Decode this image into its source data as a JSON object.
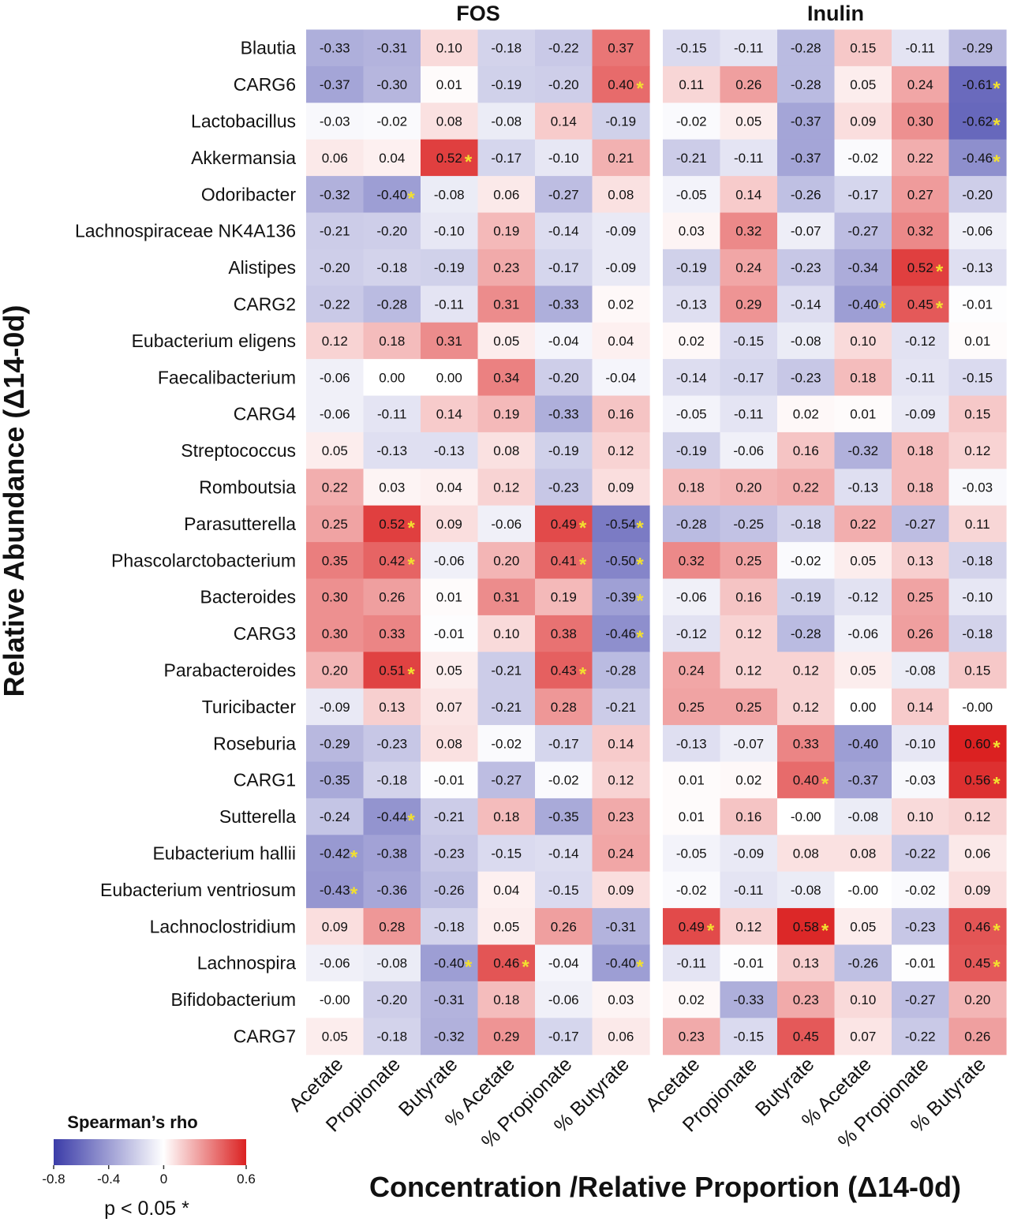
{
  "chart_data": {
    "type": "heatmap",
    "panels": [
      {
        "title": "FOS",
        "columns": [
          "Acetate",
          "Propionate",
          "Butyrate",
          "% Acetate",
          "% Propionate",
          "% Butyrate"
        ],
        "values": [
          [
            "-0.33",
            "-0.31",
            "0.10",
            "-0.18",
            "-0.22",
            "0.37"
          ],
          [
            "-0.37",
            "-0.30",
            "0.01",
            "-0.19",
            "-0.20",
            "0.40"
          ],
          [
            "-0.03",
            "-0.02",
            "0.08",
            "-0.08",
            "0.14",
            "-0.19"
          ],
          [
            "0.06",
            "0.04",
            "0.52",
            "-0.17",
            "-0.10",
            "0.21"
          ],
          [
            "-0.32",
            "-0.40",
            "-0.08",
            "0.06",
            "-0.27",
            "0.08"
          ],
          [
            "-0.21",
            "-0.20",
            "-0.10",
            "0.19",
            "-0.14",
            "-0.09"
          ],
          [
            "-0.20",
            "-0.18",
            "-0.19",
            "0.23",
            "-0.17",
            "-0.09"
          ],
          [
            "-0.22",
            "-0.28",
            "-0.11",
            "0.31",
            "-0.33",
            "0.02"
          ],
          [
            "0.12",
            "0.18",
            "0.31",
            "0.05",
            "-0.04",
            "0.04"
          ],
          [
            "-0.06",
            "0.00",
            "0.00",
            "0.34",
            "-0.20",
            "-0.04"
          ],
          [
            "-0.06",
            "-0.11",
            "0.14",
            "0.19",
            "-0.33",
            "0.16"
          ],
          [
            "0.05",
            "-0.13",
            "-0.13",
            "0.08",
            "-0.19",
            "0.12"
          ],
          [
            "0.22",
            "0.03",
            "0.04",
            "0.12",
            "-0.23",
            "0.09"
          ],
          [
            "0.25",
            "0.52",
            "0.09",
            "-0.06",
            "0.49",
            "-0.54"
          ],
          [
            "0.35",
            "0.42",
            "-0.06",
            "0.20",
            "0.41",
            "-0.50"
          ],
          [
            "0.30",
            "0.26",
            "0.01",
            "0.31",
            "0.19",
            "-0.39"
          ],
          [
            "0.30",
            "0.33",
            "-0.01",
            "0.10",
            "0.38",
            "-0.46"
          ],
          [
            "0.20",
            "0.51",
            "0.05",
            "-0.21",
            "0.43",
            "-0.28"
          ],
          [
            "-0.09",
            "0.13",
            "0.07",
            "-0.21",
            "0.28",
            "-0.21"
          ],
          [
            "-0.29",
            "-0.23",
            "0.08",
            "-0.02",
            "-0.17",
            "0.14"
          ],
          [
            "-0.35",
            "-0.18",
            "-0.01",
            "-0.27",
            "-0.02",
            "0.12"
          ],
          [
            "-0.24",
            "-0.44",
            "-0.21",
            "0.18",
            "-0.35",
            "0.23"
          ],
          [
            "-0.42",
            "-0.38",
            "-0.23",
            "-0.15",
            "-0.14",
            "0.24"
          ],
          [
            "-0.43",
            "-0.36",
            "-0.26",
            "0.04",
            "-0.15",
            "0.09"
          ],
          [
            "0.09",
            "0.28",
            "-0.18",
            "0.05",
            "0.26",
            "-0.31"
          ],
          [
            "-0.06",
            "-0.08",
            "-0.40",
            "0.46",
            "-0.04",
            "-0.40"
          ],
          [
            "-0.00",
            "-0.20",
            "-0.31",
            "0.18",
            "-0.06",
            "0.03"
          ],
          [
            "0.05",
            "-0.18",
            "-0.32",
            "0.29",
            "-0.17",
            "0.06"
          ]
        ],
        "significant": [
          [
            0,
            0,
            0,
            0,
            0,
            0
          ],
          [
            0,
            0,
            0,
            0,
            0,
            1
          ],
          [
            0,
            0,
            0,
            0,
            0,
            0
          ],
          [
            0,
            0,
            1,
            0,
            0,
            0
          ],
          [
            0,
            1,
            0,
            0,
            0,
            0
          ],
          [
            0,
            0,
            0,
            0,
            0,
            0
          ],
          [
            0,
            0,
            0,
            0,
            0,
            0
          ],
          [
            0,
            0,
            0,
            0,
            0,
            0
          ],
          [
            0,
            0,
            0,
            0,
            0,
            0
          ],
          [
            0,
            0,
            0,
            0,
            0,
            0
          ],
          [
            0,
            0,
            0,
            0,
            0,
            0
          ],
          [
            0,
            0,
            0,
            0,
            0,
            0
          ],
          [
            0,
            0,
            0,
            0,
            0,
            0
          ],
          [
            0,
            1,
            0,
            0,
            1,
            1
          ],
          [
            0,
            1,
            0,
            0,
            1,
            1
          ],
          [
            0,
            0,
            0,
            0,
            0,
            1
          ],
          [
            0,
            0,
            0,
            0,
            0,
            1
          ],
          [
            0,
            1,
            0,
            0,
            1,
            0
          ],
          [
            0,
            0,
            0,
            0,
            0,
            0
          ],
          [
            0,
            0,
            0,
            0,
            0,
            0
          ],
          [
            0,
            0,
            0,
            0,
            0,
            0
          ],
          [
            0,
            1,
            0,
            0,
            0,
            0
          ],
          [
            1,
            0,
            0,
            0,
            0,
            0
          ],
          [
            1,
            0,
            0,
            0,
            0,
            0
          ],
          [
            0,
            0,
            0,
            0,
            0,
            0
          ],
          [
            0,
            0,
            1,
            1,
            0,
            1
          ],
          [
            0,
            0,
            0,
            0,
            0,
            0
          ],
          [
            0,
            0,
            0,
            0,
            0,
            0
          ]
        ]
      },
      {
        "title": "Inulin",
        "columns": [
          "Acetate",
          "Propionate",
          "Butyrate",
          "% Acetate",
          "% Propionate",
          "% Butyrate"
        ],
        "values": [
          [
            "-0.15",
            "-0.11",
            "-0.28",
            "0.15",
            "-0.11",
            "-0.29"
          ],
          [
            "0.11",
            "0.26",
            "-0.28",
            "0.05",
            "0.24",
            "-0.61"
          ],
          [
            "-0.02",
            "0.05",
            "-0.37",
            "0.09",
            "0.30",
            "-0.62"
          ],
          [
            "-0.21",
            "-0.11",
            "-0.37",
            "-0.02",
            "0.22",
            "-0.46"
          ],
          [
            "-0.05",
            "0.14",
            "-0.26",
            "-0.17",
            "0.27",
            "-0.20"
          ],
          [
            "0.03",
            "0.32",
            "-0.07",
            "-0.27",
            "0.32",
            "-0.06"
          ],
          [
            "-0.19",
            "0.24",
            "-0.23",
            "-0.34",
            "0.52",
            "-0.13"
          ],
          [
            "-0.13",
            "0.29",
            "-0.14",
            "-0.40",
            "0.45",
            "-0.01"
          ],
          [
            "0.02",
            "-0.15",
            "-0.08",
            "0.10",
            "-0.12",
            "0.01"
          ],
          [
            "-0.14",
            "-0.17",
            "-0.23",
            "0.18",
            "-0.11",
            "-0.15"
          ],
          [
            "-0.05",
            "-0.11",
            "0.02",
            "0.01",
            "-0.09",
            "0.15"
          ],
          [
            "-0.19",
            "-0.06",
            "0.16",
            "-0.32",
            "0.18",
            "0.12"
          ],
          [
            "0.18",
            "0.20",
            "0.22",
            "-0.13",
            "0.18",
            "-0.03"
          ],
          [
            "-0.28",
            "-0.25",
            "-0.18",
            "0.22",
            "-0.27",
            "0.11"
          ],
          [
            "0.32",
            "0.25",
            "-0.02",
            "0.05",
            "0.13",
            "-0.18"
          ],
          [
            "-0.06",
            "0.16",
            "-0.19",
            "-0.12",
            "0.25",
            "-0.10"
          ],
          [
            "-0.12",
            "0.12",
            "-0.28",
            "-0.06",
            "0.26",
            "-0.18"
          ],
          [
            "0.24",
            "0.12",
            "0.12",
            "0.05",
            "-0.08",
            "0.15"
          ],
          [
            "0.25",
            "0.25",
            "0.12",
            "0.00",
            "0.14",
            "-0.00"
          ],
          [
            "-0.13",
            "-0.07",
            "0.33",
            "-0.40",
            "-0.10",
            "0.60"
          ],
          [
            "0.01",
            "0.02",
            "0.40",
            "-0.37",
            "-0.03",
            "0.56"
          ],
          [
            "0.01",
            "0.16",
            "-0.00",
            "-0.08",
            "0.10",
            "0.12"
          ],
          [
            "-0.05",
            "-0.09",
            "0.08",
            "0.08",
            "-0.22",
            "0.06"
          ],
          [
            "-0.02",
            "-0.11",
            "-0.08",
            "-0.00",
            "-0.02",
            "0.09"
          ],
          [
            "0.49",
            "0.12",
            "0.58",
            "0.05",
            "-0.23",
            "0.46"
          ],
          [
            "-0.11",
            "-0.01",
            "0.13",
            "-0.26",
            "-0.01",
            "0.45"
          ],
          [
            "0.02",
            "-0.33",
            "0.23",
            "0.10",
            "-0.27",
            "0.20"
          ],
          [
            "0.23",
            "-0.15",
            "0.45",
            "0.07",
            "-0.22",
            "0.26"
          ]
        ],
        "significant": [
          [
            0,
            0,
            0,
            0,
            0,
            0
          ],
          [
            0,
            0,
            0,
            0,
            0,
            1
          ],
          [
            0,
            0,
            0,
            0,
            0,
            1
          ],
          [
            0,
            0,
            0,
            0,
            0,
            1
          ],
          [
            0,
            0,
            0,
            0,
            0,
            0
          ],
          [
            0,
            0,
            0,
            0,
            0,
            0
          ],
          [
            0,
            0,
            0,
            0,
            1,
            0
          ],
          [
            0,
            0,
            0,
            1,
            1,
            0
          ],
          [
            0,
            0,
            0,
            0,
            0,
            0
          ],
          [
            0,
            0,
            0,
            0,
            0,
            0
          ],
          [
            0,
            0,
            0,
            0,
            0,
            0
          ],
          [
            0,
            0,
            0,
            0,
            0,
            0
          ],
          [
            0,
            0,
            0,
            0,
            0,
            0
          ],
          [
            0,
            0,
            0,
            0,
            0,
            0
          ],
          [
            0,
            0,
            0,
            0,
            0,
            0
          ],
          [
            0,
            0,
            0,
            0,
            0,
            0
          ],
          [
            0,
            0,
            0,
            0,
            0,
            0
          ],
          [
            0,
            0,
            0,
            0,
            0,
            0
          ],
          [
            0,
            0,
            0,
            0,
            0,
            0
          ],
          [
            0,
            0,
            0,
            0,
            0,
            1
          ],
          [
            0,
            0,
            1,
            0,
            0,
            1
          ],
          [
            0,
            0,
            0,
            0,
            0,
            0
          ],
          [
            0,
            0,
            0,
            0,
            0,
            0
          ],
          [
            0,
            0,
            0,
            0,
            0,
            0
          ],
          [
            1,
            0,
            1,
            0,
            0,
            1
          ],
          [
            0,
            0,
            0,
            0,
            0,
            1
          ],
          [
            0,
            0,
            0,
            0,
            0,
            0
          ],
          [
            0,
            0,
            0,
            0,
            0,
            0
          ]
        ]
      }
    ],
    "rows": [
      "Blautia",
      "CARG6",
      "Lactobacillus",
      "Akkermansia",
      "Odoribacter",
      "Lachnospiraceae NK4A136",
      "Alistipes",
      "CARG2",
      "Eubacterium eligens",
      "Faecalibacterium",
      "CARG4",
      "Streptococcus",
      "Romboutsia",
      "Parasutterella",
      "Phascolarctobacterium",
      "Bacteroides",
      "CARG3",
      "Parabacteroides",
      "Turicibacter",
      "Roseburia",
      "CARG1",
      "Sutterella",
      "Eubacterium hallii",
      "Eubacterium ventriosum",
      "Lachnoclostridium",
      "Lachnospira",
      "Bifidobacterium",
      "CARG7"
    ],
    "ylabel": "Relative Abundance (Δ14-0d)",
    "xlabel": "Concentration /Relative Proportion (Δ14-0d)",
    "significance_marker": "*",
    "colorscale": {
      "title": "Spearman’s rho",
      "min": -0.8,
      "max": 0.6,
      "ticks": [
        "-0.8",
        "-0.4",
        "0",
        "0.6"
      ],
      "low_color": "#3b3ca8",
      "mid_color": "#ffffff",
      "high_color": "#db2121",
      "note": "p < 0.05 *"
    }
  }
}
